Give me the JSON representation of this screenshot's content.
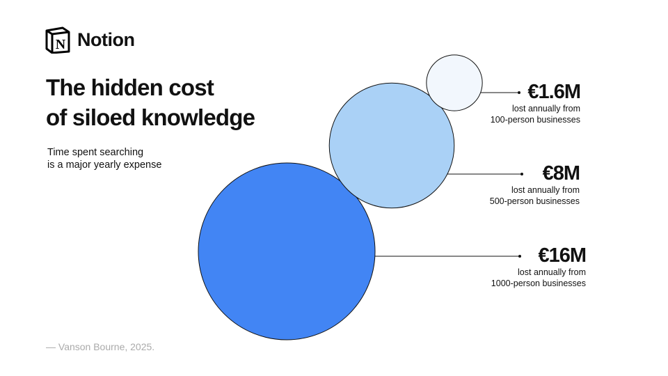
{
  "brand": {
    "name": "Notion",
    "logo_letter": "N"
  },
  "title_line1": "The hidden cost",
  "title_line2": "of siloed knowledge",
  "subtitle_line1": "Time spent searching",
  "subtitle_line2": "is a major yearly expense",
  "source": "— Vanson Bourne, 2025.",
  "chart_data": {
    "type": "bubble",
    "unit": "€M",
    "series": [
      {
        "value": 1.6,
        "label": "€1.6M",
        "desc1": "lost annually from",
        "desc2": "100-person businesses",
        "color": "#f2f7fd"
      },
      {
        "value": 8,
        "label": "€8M",
        "desc1": "lost annually from",
        "desc2": "500-person businesses",
        "color": "#aad1f6"
      },
      {
        "value": 16,
        "label": "€16M",
        "desc1": "lost annually from",
        "desc2": "1000-person businesses",
        "color": "#4285f4"
      }
    ]
  }
}
